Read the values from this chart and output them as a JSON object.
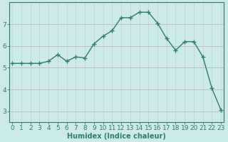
{
  "x": [
    0,
    1,
    2,
    3,
    4,
    5,
    6,
    7,
    8,
    9,
    10,
    11,
    12,
    13,
    14,
    15,
    16,
    17,
    18,
    19,
    20,
    21,
    22,
    23
  ],
  "y": [
    5.2,
    5.2,
    5.2,
    5.2,
    5.3,
    5.6,
    5.3,
    5.5,
    5.45,
    6.1,
    6.45,
    6.7,
    7.3,
    7.3,
    7.55,
    7.55,
    7.05,
    6.35,
    5.8,
    6.2,
    6.2,
    5.5,
    4.05,
    3.05
  ],
  "line_color": "#2e7d6e",
  "marker": "+",
  "marker_size": 4,
  "line_width": 1.0,
  "bg_color": "#cceae7",
  "grid_color_v": "#c0d8d5",
  "grid_color_h": "#c0b8b8",
  "xlabel": "Humidex (Indice chaleur)",
  "xlabel_fontsize": 7,
  "xtick_labels": [
    "0",
    "1",
    "2",
    "3",
    "4",
    "5",
    "6",
    "7",
    "8",
    "9",
    "10",
    "11",
    "12",
    "13",
    "14",
    "15",
    "16",
    "17",
    "18",
    "19",
    "20",
    "21",
    "22",
    "23"
  ],
  "ytick_values": [
    3,
    4,
    5,
    6,
    7
  ],
  "ylim": [
    2.5,
    8.0
  ],
  "xlim": [
    -0.3,
    23.3
  ],
  "tick_fontsize": 6.5,
  "linestyle": "-"
}
